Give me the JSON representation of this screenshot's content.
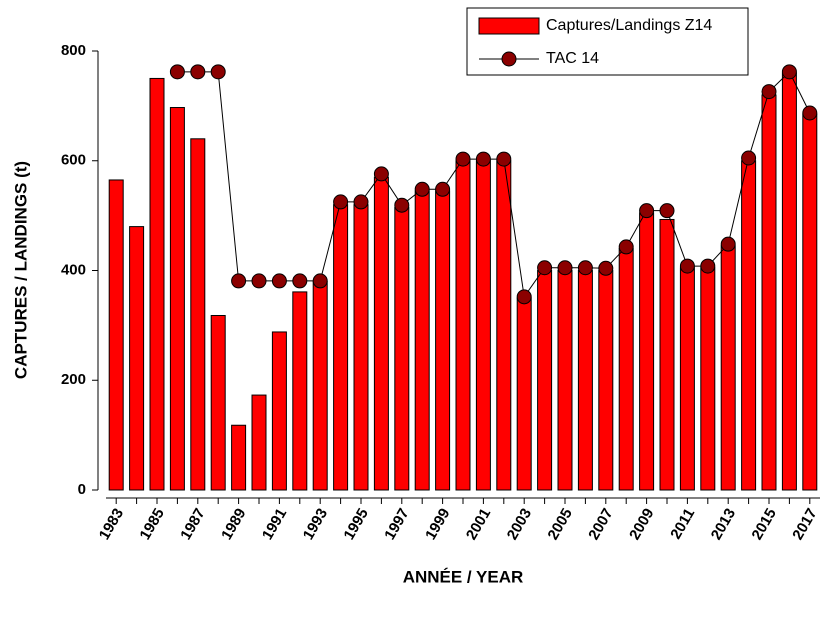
{
  "chart_data": {
    "type": "bar",
    "x_label": "ANNÉE / YEAR",
    "y_label": "CAPTURES / LANDINGS (t)",
    "categories": [
      "1983",
      null,
      "1985",
      null,
      "1987",
      null,
      "1989",
      null,
      "1991",
      null,
      "1993",
      null,
      "1995",
      null,
      "1997",
      null,
      "1999",
      null,
      "2001",
      null,
      "2003",
      null,
      "2005",
      null,
      "2007",
      null,
      "2009",
      null,
      "2011",
      null,
      "2013",
      null,
      "2015",
      null,
      "2017"
    ],
    "series": [
      {
        "name": "Captures/Landings Z14",
        "type": "bar",
        "color": "#ff0000",
        "values": [
          565,
          480,
          750,
          697,
          640,
          318,
          118,
          173,
          288,
          361,
          380,
          520,
          520,
          570,
          515,
          545,
          545,
          600,
          600,
          600,
          350,
          400,
          400,
          400,
          400,
          440,
          505,
          493,
          405,
          405,
          445,
          600,
          720,
          760,
          685
        ]
      },
      {
        "name": "TAC 14",
        "type": "line",
        "color": "#8b0000",
        "values": [
          null,
          null,
          null,
          762,
          762,
          762,
          381,
          381,
          381,
          381,
          381,
          525,
          525,
          576,
          519,
          548,
          548,
          603,
          603,
          603,
          352,
          405,
          405,
          405,
          404,
          443,
          509,
          509,
          408,
          408,
          448,
          605,
          726,
          762,
          687
        ]
      }
    ],
    "ylim": [
      0,
      800
    ],
    "yticks": [
      0,
      200,
      400,
      600,
      800
    ],
    "legend": "upper right"
  }
}
